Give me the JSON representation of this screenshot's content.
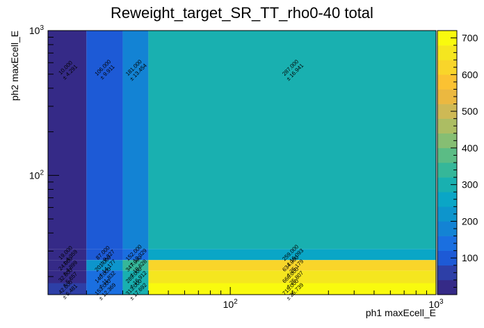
{
  "chart_data": {
    "type": "heatmap",
    "title": "Reweight_target_SR_TT_rho0-40 total",
    "xlabel": "ph1 maxEcell_E",
    "ylabel": "ph2 maxEcell_E",
    "xscale": "log",
    "yscale": "log",
    "xlim": [
      13,
      1000
    ],
    "ylim": [
      15,
      1000
    ],
    "x_ticks": [
      {
        "value": 100,
        "label": "10",
        "exp": "2"
      },
      {
        "value": 1000,
        "label": "10",
        "exp": "3"
      }
    ],
    "y_ticks": [
      {
        "value": 100,
        "label": "10",
        "exp": "2"
      },
      {
        "value": 1000,
        "label": "10",
        "exp": "3"
      }
    ],
    "x_edges": [
      13,
      20,
      30,
      40,
      1000
    ],
    "y_edges": [
      15,
      18,
      22,
      26,
      31,
      1000
    ],
    "z_range": [
      0,
      720
    ],
    "colorbar_ticks": [
      100,
      200,
      300,
      400,
      500,
      600,
      700
    ],
    "palette": [
      "#352a87",
      "#2d3fa7",
      "#1d5ad6",
      "#1a6fe0",
      "#1383d4",
      "#0d95cc",
      "#0aa6c6",
      "#19b0b0",
      "#35b799",
      "#5bbc85",
      "#86be73",
      "#acbd63",
      "#ceb955",
      "#ebb840",
      "#fbc232",
      "#f9d52a",
      "#f5e61f",
      "#f9fa0e"
    ],
    "grid": false,
    "legend": "colorbar-right",
    "cells": [
      {
        "xi": 0,
        "yi": 4,
        "value": 10.0,
        "label": "10.000",
        "error": "± 4.291"
      },
      {
        "xi": 1,
        "yi": 4,
        "value": 106.0,
        "label": "106.000",
        "error": "± 9.911"
      },
      {
        "xi": 2,
        "yi": 4,
        "value": 181.0,
        "label": "181.000",
        "error": "± 13.454"
      },
      {
        "xi": 3,
        "yi": 4,
        "value": 287.0,
        "label": "287.000",
        "error": "± 16.941"
      },
      {
        "xi": 0,
        "yi": 3,
        "value": 19.0,
        "label": "19.000",
        "error": "± 4.359"
      },
      {
        "xi": 1,
        "yi": 3,
        "value": 87.0,
        "label": "87.000",
        "error": "± 9.327"
      },
      {
        "xi": 2,
        "yi": 3,
        "value": 152.0,
        "label": "152.000",
        "error": "± 12.329"
      },
      {
        "xi": 3,
        "yi": 3,
        "value": 259.0,
        "label": "259.000",
        "error": "± 16.093"
      },
      {
        "xi": 0,
        "yi": 2,
        "value": 24.0,
        "label": "24.000",
        "error": "± 4.899"
      },
      {
        "xi": 1,
        "yi": 2,
        "value": 201.0,
        "label": "201.000",
        "error": "± 14.177"
      },
      {
        "xi": 2,
        "yi": 2,
        "value": 347.0,
        "label": "347.000",
        "error": "± 18.628"
      },
      {
        "xi": 3,
        "yi": 2,
        "value": 634.0,
        "label": "634.000",
        "error": "± 25.179"
      },
      {
        "xi": 0,
        "yi": 1,
        "value": 32.0,
        "label": "32.000",
        "error": "± 5.657"
      },
      {
        "xi": 1,
        "yi": 1,
        "value": 140.0,
        "label": "140.000",
        "error": "± 11.832"
      },
      {
        "xi": 2,
        "yi": 1,
        "value": 289.0,
        "label": "289.000",
        "error": "± 16.912"
      },
      {
        "xi": 3,
        "yi": 1,
        "value": 666.0,
        "label": "666.000",
        "error": "± 25.807"
      },
      {
        "xi": 0,
        "yi": 0,
        "value": 42.0,
        "label": "42.000",
        "error": "± 6.481"
      },
      {
        "xi": 1,
        "yi": 0,
        "value": 153.0,
        "label": "153.000",
        "error": "± 12.369"
      },
      {
        "xi": 2,
        "yi": 0,
        "value": 313.0,
        "label": "313.000",
        "error": "± 17.692"
      },
      {
        "xi": 3,
        "yi": 0,
        "value": 715.0,
        "label": "715.000",
        "error": "± 26.739"
      }
    ]
  }
}
